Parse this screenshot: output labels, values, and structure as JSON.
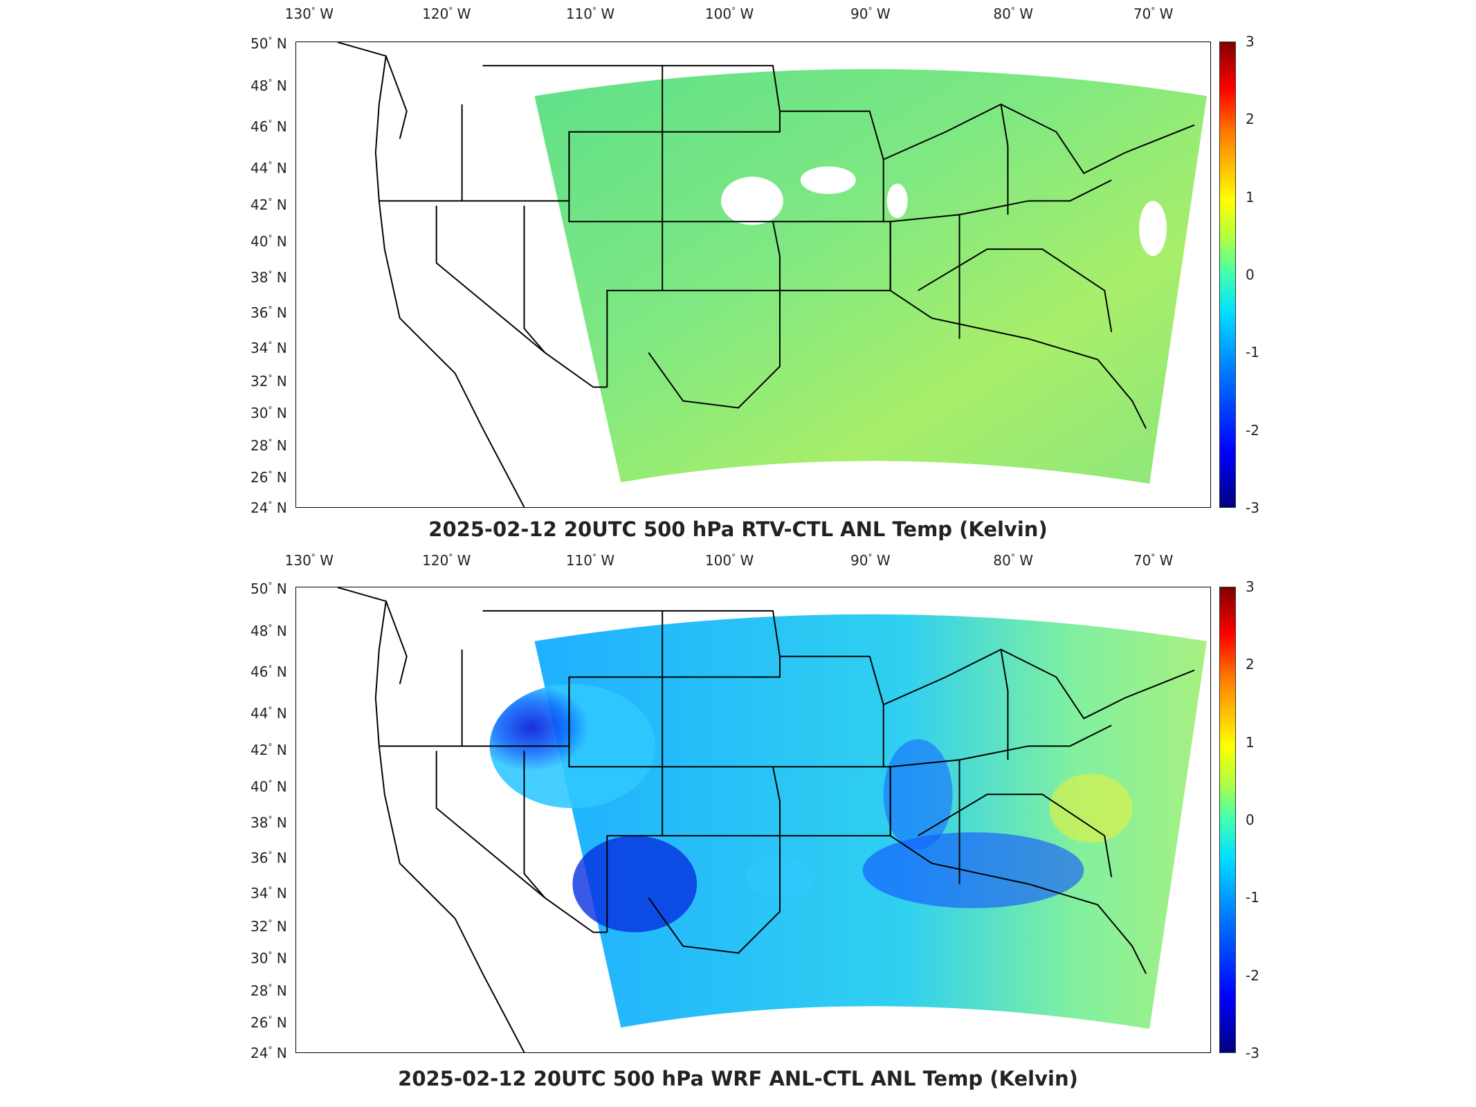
{
  "longitude_labels": [
    {
      "deg": "130",
      "dir": "W"
    },
    {
      "deg": "120",
      "dir": "W"
    },
    {
      "deg": "110",
      "dir": "W"
    },
    {
      "deg": "100",
      "dir": "W"
    },
    {
      "deg": "90",
      "dir": "W"
    },
    {
      "deg": "80",
      "dir": "W"
    },
    {
      "deg": "70",
      "dir": "W"
    }
  ],
  "latitude_labels": [
    {
      "deg": "50",
      "dir": "N"
    },
    {
      "deg": "48",
      "dir": "N"
    },
    {
      "deg": "46",
      "dir": "N"
    },
    {
      "deg": "44",
      "dir": "N"
    },
    {
      "deg": "42",
      "dir": "N"
    },
    {
      "deg": "40",
      "dir": "N"
    },
    {
      "deg": "38",
      "dir": "N"
    },
    {
      "deg": "36",
      "dir": "N"
    },
    {
      "deg": "34",
      "dir": "N"
    },
    {
      "deg": "32",
      "dir": "N"
    },
    {
      "deg": "30",
      "dir": "N"
    },
    {
      "deg": "28",
      "dir": "N"
    },
    {
      "deg": "26",
      "dir": "N"
    },
    {
      "deg": "24",
      "dir": "N"
    }
  ],
  "colorbar": {
    "ticks": [
      "3",
      "2",
      "1",
      "0",
      "-1",
      "-2",
      "-3"
    ],
    "range": [
      -3,
      3
    ],
    "colormap": "jet"
  },
  "panels": [
    {
      "title": "2025-02-12 20UTC 500 hPa RTV-CTL ANL Temp (Kelvin)",
      "field": "RTV-CTL",
      "dominant_color": "#7fe07a"
    },
    {
      "title": "2025-02-12 20UTC 500 hPa WRF ANL-CTL ANL Temp (Kelvin)",
      "field": "WRF ANL-CTL",
      "dominant_color": "#20b8ff"
    }
  ],
  "colors": {
    "land_line": "#000000",
    "background": "#ffffff"
  }
}
